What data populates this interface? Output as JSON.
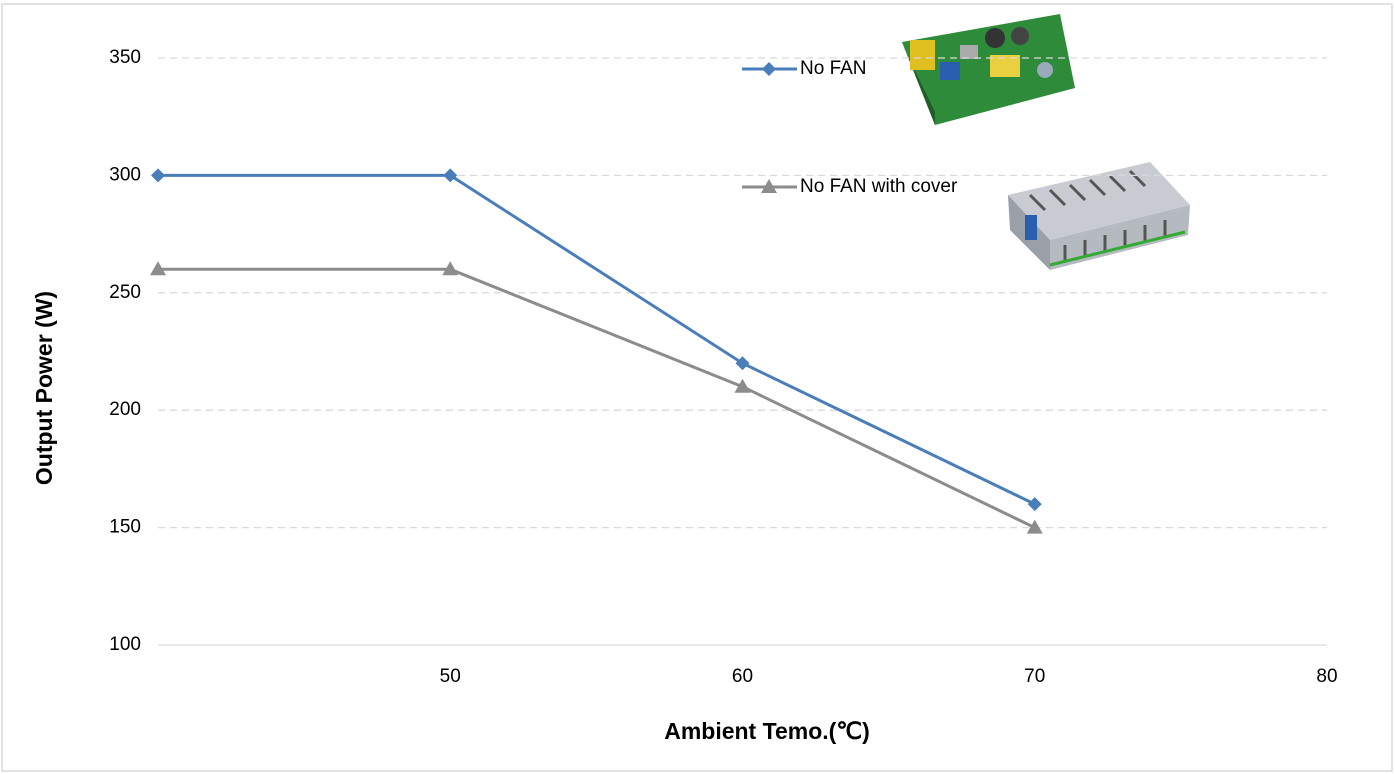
{
  "chart_data": {
    "type": "line",
    "x_label": "Ambient Temo.(℃)",
    "y_label": "Output  Power (W)",
    "x": [
      40,
      50,
      60,
      70
    ],
    "series": [
      {
        "name": "No FAN",
        "color": "#4a7ebb",
        "marker": "diamond",
        "values": [
          300,
          300,
          220,
          160
        ]
      },
      {
        "name": "No FAN with cover",
        "color": "#8c8c8c",
        "marker": "triangle",
        "values": [
          260,
          260,
          210,
          150
        ]
      }
    ],
    "xlim": [
      40,
      80
    ],
    "xticks": [
      50,
      60,
      70,
      80
    ],
    "ylim": [
      100,
      370
    ],
    "yticks": [
      100,
      150,
      200,
      250,
      300,
      350
    ],
    "grid": true
  }
}
